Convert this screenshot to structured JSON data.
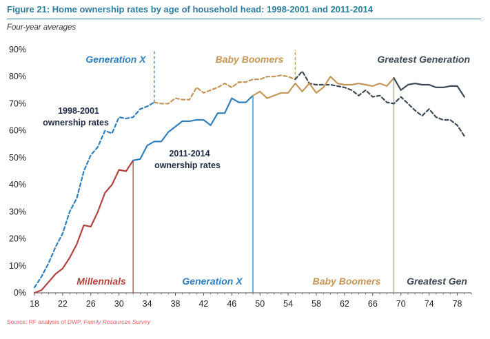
{
  "figure": {
    "title": "Figure 21:  Home ownership rates by age of household head: 1998-2001 and 2011-2014",
    "subtitle": "Four-year averages",
    "source_prefix": "Source: RF analysis of DWP, ",
    "source_title": "Family Resources Survey"
  },
  "colors": {
    "millennials": "#b3413f",
    "genx": "#2f7fbd",
    "boomers": "#c4965a",
    "greatest": "#3e4a55",
    "axis": "#555555"
  },
  "chart_data": {
    "type": "line",
    "xlim": [
      18,
      80
    ],
    "ylim": [
      0,
      90
    ],
    "x_ticks": [
      "18",
      "22",
      "26",
      "30",
      "34",
      "38",
      "42",
      "46",
      "50",
      "54",
      "58",
      "62",
      "66",
      "70",
      "74",
      "78"
    ],
    "y_ticks": [
      "0%",
      "10%",
      "20%",
      "30%",
      "40%",
      "50%",
      "60%",
      "70%",
      "80%",
      "90%"
    ],
    "grid": false,
    "series": [
      {
        "name": "1998-2001 ownership rates",
        "style": "dashed",
        "segments": [
          {
            "generation": "genx",
            "x": [
              18,
              19,
              20,
              21,
              22,
              23,
              24,
              25,
              26,
              27,
              28,
              29,
              30,
              31,
              32,
              33,
              34,
              35
            ],
            "y": [
              2,
              6,
              11,
              17,
              22,
              30,
              35,
              45,
              51,
              54,
              60,
              59,
              65,
              64.5,
              65,
              68,
              69,
              70.5
            ]
          },
          {
            "generation": "boomers",
            "x": [
              35,
              36,
              37,
              38,
              39,
              40,
              41,
              42,
              43,
              44,
              45,
              46,
              47,
              48,
              49,
              50,
              51,
              52,
              53,
              54,
              55
            ],
            "y": [
              70.5,
              70,
              70,
              72,
              71.5,
              71.5,
              76,
              74,
              75,
              76,
              77.5,
              76,
              78,
              78,
              79,
              79,
              80,
              80,
              80.5,
              80,
              79
            ]
          },
          {
            "generation": "greatest",
            "x": [
              55,
              56,
              57,
              58,
              59,
              60,
              61,
              62,
              63,
              64,
              65,
              66,
              67,
              68,
              69,
              70,
              71,
              72,
              73,
              74,
              75,
              76,
              77,
              78,
              79
            ],
            "y": [
              79,
              82,
              77.5,
              77,
              77,
              77,
              76.5,
              76,
              75,
              73,
              75,
              72.5,
              73,
              70.5,
              70,
              72.5,
              70,
              67.5,
              65.5,
              68,
              65,
              64,
              64,
              62,
              58
            ]
          }
        ]
      },
      {
        "name": "2011-2014 ownership rates",
        "style": "solid",
        "segments": [
          {
            "generation": "millennials",
            "x": [
              18,
              19,
              20,
              21,
              22,
              23,
              24,
              25,
              26,
              27,
              28,
              29,
              30,
              31,
              32
            ],
            "y": [
              0,
              1,
              4,
              7,
              9,
              13,
              18,
              25,
              24.5,
              30,
              37,
              40,
              45.5,
              45,
              49
            ]
          },
          {
            "generation": "genx",
            "x": [
              32,
              33,
              34,
              35,
              36,
              37,
              38,
              39,
              40,
              41,
              42,
              43,
              44,
              45,
              46,
              47,
              48,
              49
            ],
            "y": [
              49,
              49.5,
              54.5,
              56,
              56,
              59.5,
              61.5,
              63.5,
              63.5,
              64,
              64,
              62,
              66.5,
              66.5,
              72,
              70.5,
              70.5,
              73
            ]
          },
          {
            "generation": "boomers",
            "x": [
              49,
              50,
              51,
              52,
              53,
              54,
              55,
              56,
              57,
              58,
              59,
              60,
              61,
              62,
              63,
              64,
              65,
              66,
              67,
              68,
              69
            ],
            "y": [
              73,
              74.5,
              72,
              73,
              74,
              74,
              77.5,
              74.5,
              77.5,
              74,
              76,
              80,
              77.5,
              77,
              77,
              77.5,
              77,
              76.5,
              77.5,
              76.5,
              79.5
            ]
          },
          {
            "generation": "greatest",
            "x": [
              69,
              70,
              71,
              72,
              73,
              74,
              75,
              76,
              77,
              78,
              79
            ],
            "y": [
              79.5,
              75,
              77,
              77.5,
              77,
              77,
              76,
              76,
              76.5,
              76.5,
              72.5
            ]
          }
        ]
      }
    ],
    "boundaries": [
      {
        "x": 32,
        "generation": "millennials",
        "style": "solid"
      },
      {
        "x": 49,
        "generation": "genx",
        "style": "solid"
      },
      {
        "x": 69,
        "generation": "boomers",
        "style": "solid"
      },
      {
        "x": 35,
        "generation": "genx",
        "style": "dashed"
      },
      {
        "x": 55,
        "generation": "boomers",
        "style": "dashed"
      }
    ],
    "annotations": {
      "top": [
        {
          "label": "Generation X",
          "generation": "genx"
        },
        {
          "label": "Baby Boomers",
          "generation": "boomers"
        },
        {
          "label": "Greatest Generation",
          "generation": "greatest"
        }
      ],
      "bottom": [
        {
          "label": "Millennials",
          "generation": "millennials"
        },
        {
          "label": "Generation X",
          "generation": "genx"
        },
        {
          "label": "Baby Boomers",
          "generation": "boomers"
        },
        {
          "label": "Greatest Gen",
          "generation": "greatest"
        }
      ],
      "series_labels": [
        {
          "line1": "1998-2001",
          "line2": "ownership rates"
        },
        {
          "line1": "2011-2014",
          "line2": "ownership rates"
        }
      ]
    }
  }
}
